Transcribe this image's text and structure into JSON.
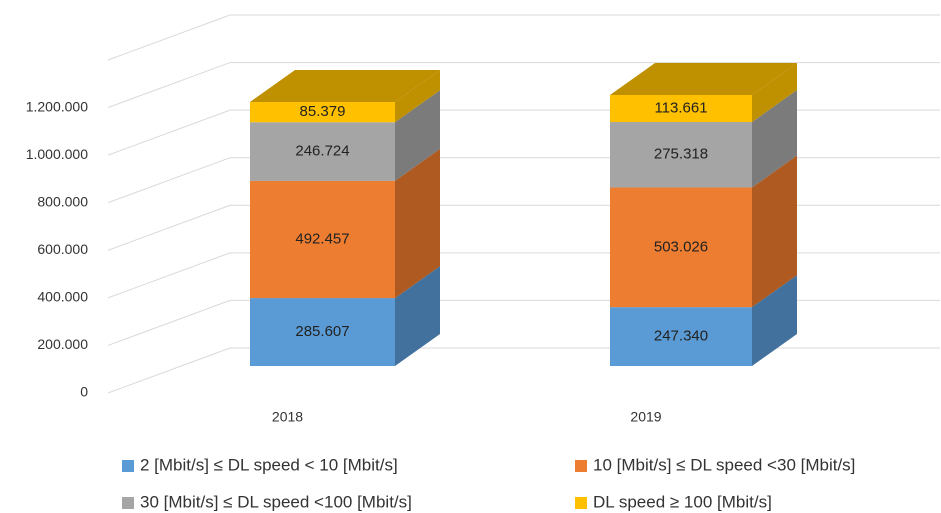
{
  "chart_data": {
    "type": "bar3d_stacked",
    "categories": [
      "2018",
      "2019"
    ],
    "series": [
      {
        "name": "2 [Mbit/s] ≤ DL speed < 10 [Mbit/s]",
        "color": "#5b9bd5",
        "side": "#41719c",
        "values": [
          285607,
          247340
        ],
        "value_labels": [
          "285.607",
          "247.340"
        ]
      },
      {
        "name": "10 [Mbit/s] ≤  DL speed <30 [Mbit/s]",
        "color": "#ed7d31",
        "side": "#ae5a21",
        "values": [
          492457,
          503026
        ],
        "value_labels": [
          "492.457",
          "503.026"
        ]
      },
      {
        "name": "30 [Mbit/s] ≤  DL speed <100 [Mbit/s]",
        "color": "#a5a5a5",
        "side": "#7b7b7b",
        "values": [
          246724,
          275318
        ],
        "value_labels": [
          "246.724",
          "275.318"
        ]
      },
      {
        "name": "DL speed ≥ 100 [Mbit/s]",
        "color": "#ffc000",
        "side": "#bf9000",
        "values": [
          85379,
          113661
        ],
        "value_labels": [
          "85.379",
          "113.661"
        ]
      }
    ],
    "ylim": [
      0,
      1400000
    ],
    "yticks": [
      0,
      {
        "value": 200000,
        "label": "200.000"
      },
      {
        "value": 400000,
        "label": "400.000"
      },
      {
        "value": 600000,
        "label": "600.000"
      },
      {
        "value": 800000,
        "label": "800.000"
      },
      {
        "value": 1000000,
        "label": "1.000.000"
      },
      {
        "value": 1200000,
        "label": "1.200.000"
      }
    ],
    "grid": true
  }
}
